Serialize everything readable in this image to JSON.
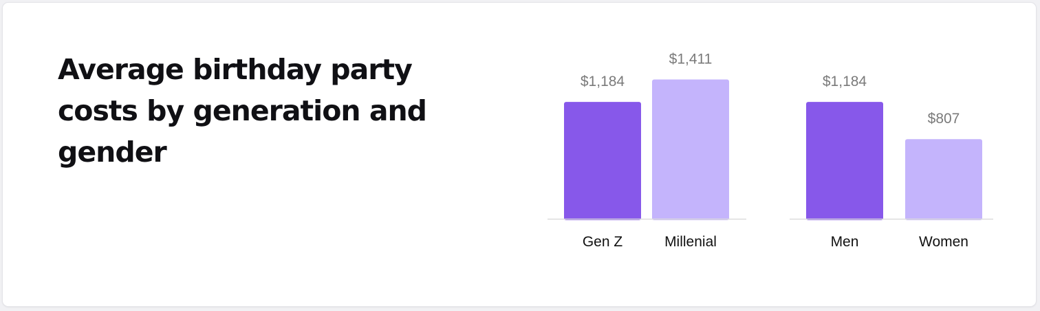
{
  "title": "Average birthday party costs by generation and gender",
  "colors": {
    "primary": "#8758ea",
    "secondary": "#c4b4fc",
    "value_label": "#7a7a7a",
    "category_label": "#111111",
    "baseline": "#dcdcdc"
  },
  "chart_data": [
    {
      "type": "bar",
      "title": "",
      "xlabel": "",
      "ylabel": "",
      "categories": [
        "Gen Z",
        "Millenial"
      ],
      "values": [
        1184,
        1411
      ],
      "value_labels": [
        "$1,184",
        "$1,411"
      ],
      "bar_colors": [
        "primary",
        "secondary"
      ],
      "grid": false,
      "legend": "none"
    },
    {
      "type": "bar",
      "title": "",
      "xlabel": "",
      "ylabel": "",
      "categories": [
        "Men",
        "Women"
      ],
      "values": [
        1184,
        807
      ],
      "value_labels": [
        "$1,184",
        "$807"
      ],
      "bar_colors": [
        "primary",
        "secondary"
      ],
      "grid": false,
      "legend": "none"
    }
  ]
}
